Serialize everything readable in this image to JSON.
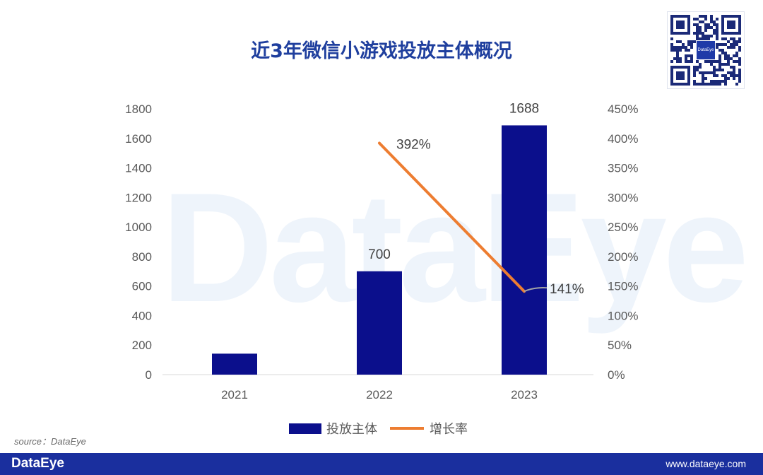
{
  "header": {
    "title": "近3年微信小游戏投放主体概况"
  },
  "watermark": "DataEye",
  "qr": {
    "logo_text": "DataEye"
  },
  "source": "source：DataEye",
  "footer": {
    "brand": "DataEye",
    "url": "www.dataeye.com"
  },
  "colors": {
    "bar": "#0b0f8c",
    "line": "#ed7d31",
    "title": "#1f3f9e",
    "footer": "#1a2f9e"
  },
  "chart_data": {
    "type": "bar",
    "categories": [
      "2021",
      "2022",
      "2023"
    ],
    "series": [
      {
        "name": "投放主体",
        "type": "bar",
        "axis": "left",
        "values": [
          142,
          700,
          1688
        ],
        "labels": [
          null,
          "700",
          "1688"
        ]
      },
      {
        "name": "增长率",
        "type": "line",
        "axis": "right",
        "values": [
          null,
          392,
          141
        ],
        "labels": [
          null,
          "392%",
          "141%"
        ]
      }
    ],
    "y_left": {
      "min": 0,
      "max": 1800,
      "ticks": [
        "0",
        "200",
        "400",
        "600",
        "800",
        "1000",
        "1200",
        "1400",
        "1600",
        "1800"
      ]
    },
    "y_right": {
      "min": 0,
      "max": 450,
      "ticks": [
        "0%",
        "50%",
        "100%",
        "150%",
        "200%",
        "250%",
        "300%",
        "350%",
        "400%",
        "450%"
      ]
    },
    "legend": "bottom",
    "grid": false
  }
}
